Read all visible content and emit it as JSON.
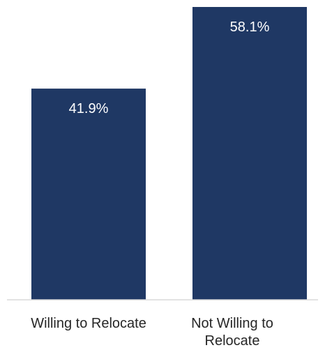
{
  "chart_data": {
    "type": "bar",
    "title": "",
    "xlabel": "",
    "ylabel": "",
    "categories": [
      "Willing to Relocate",
      "Not Willing to Relocate"
    ],
    "values": [
      41.9,
      58.1
    ],
    "value_labels": [
      "41.9%",
      "58.1%"
    ],
    "ylim": [
      0,
      58.1
    ],
    "grid": false,
    "legend": "none",
    "bar_color": "#1f3864"
  }
}
